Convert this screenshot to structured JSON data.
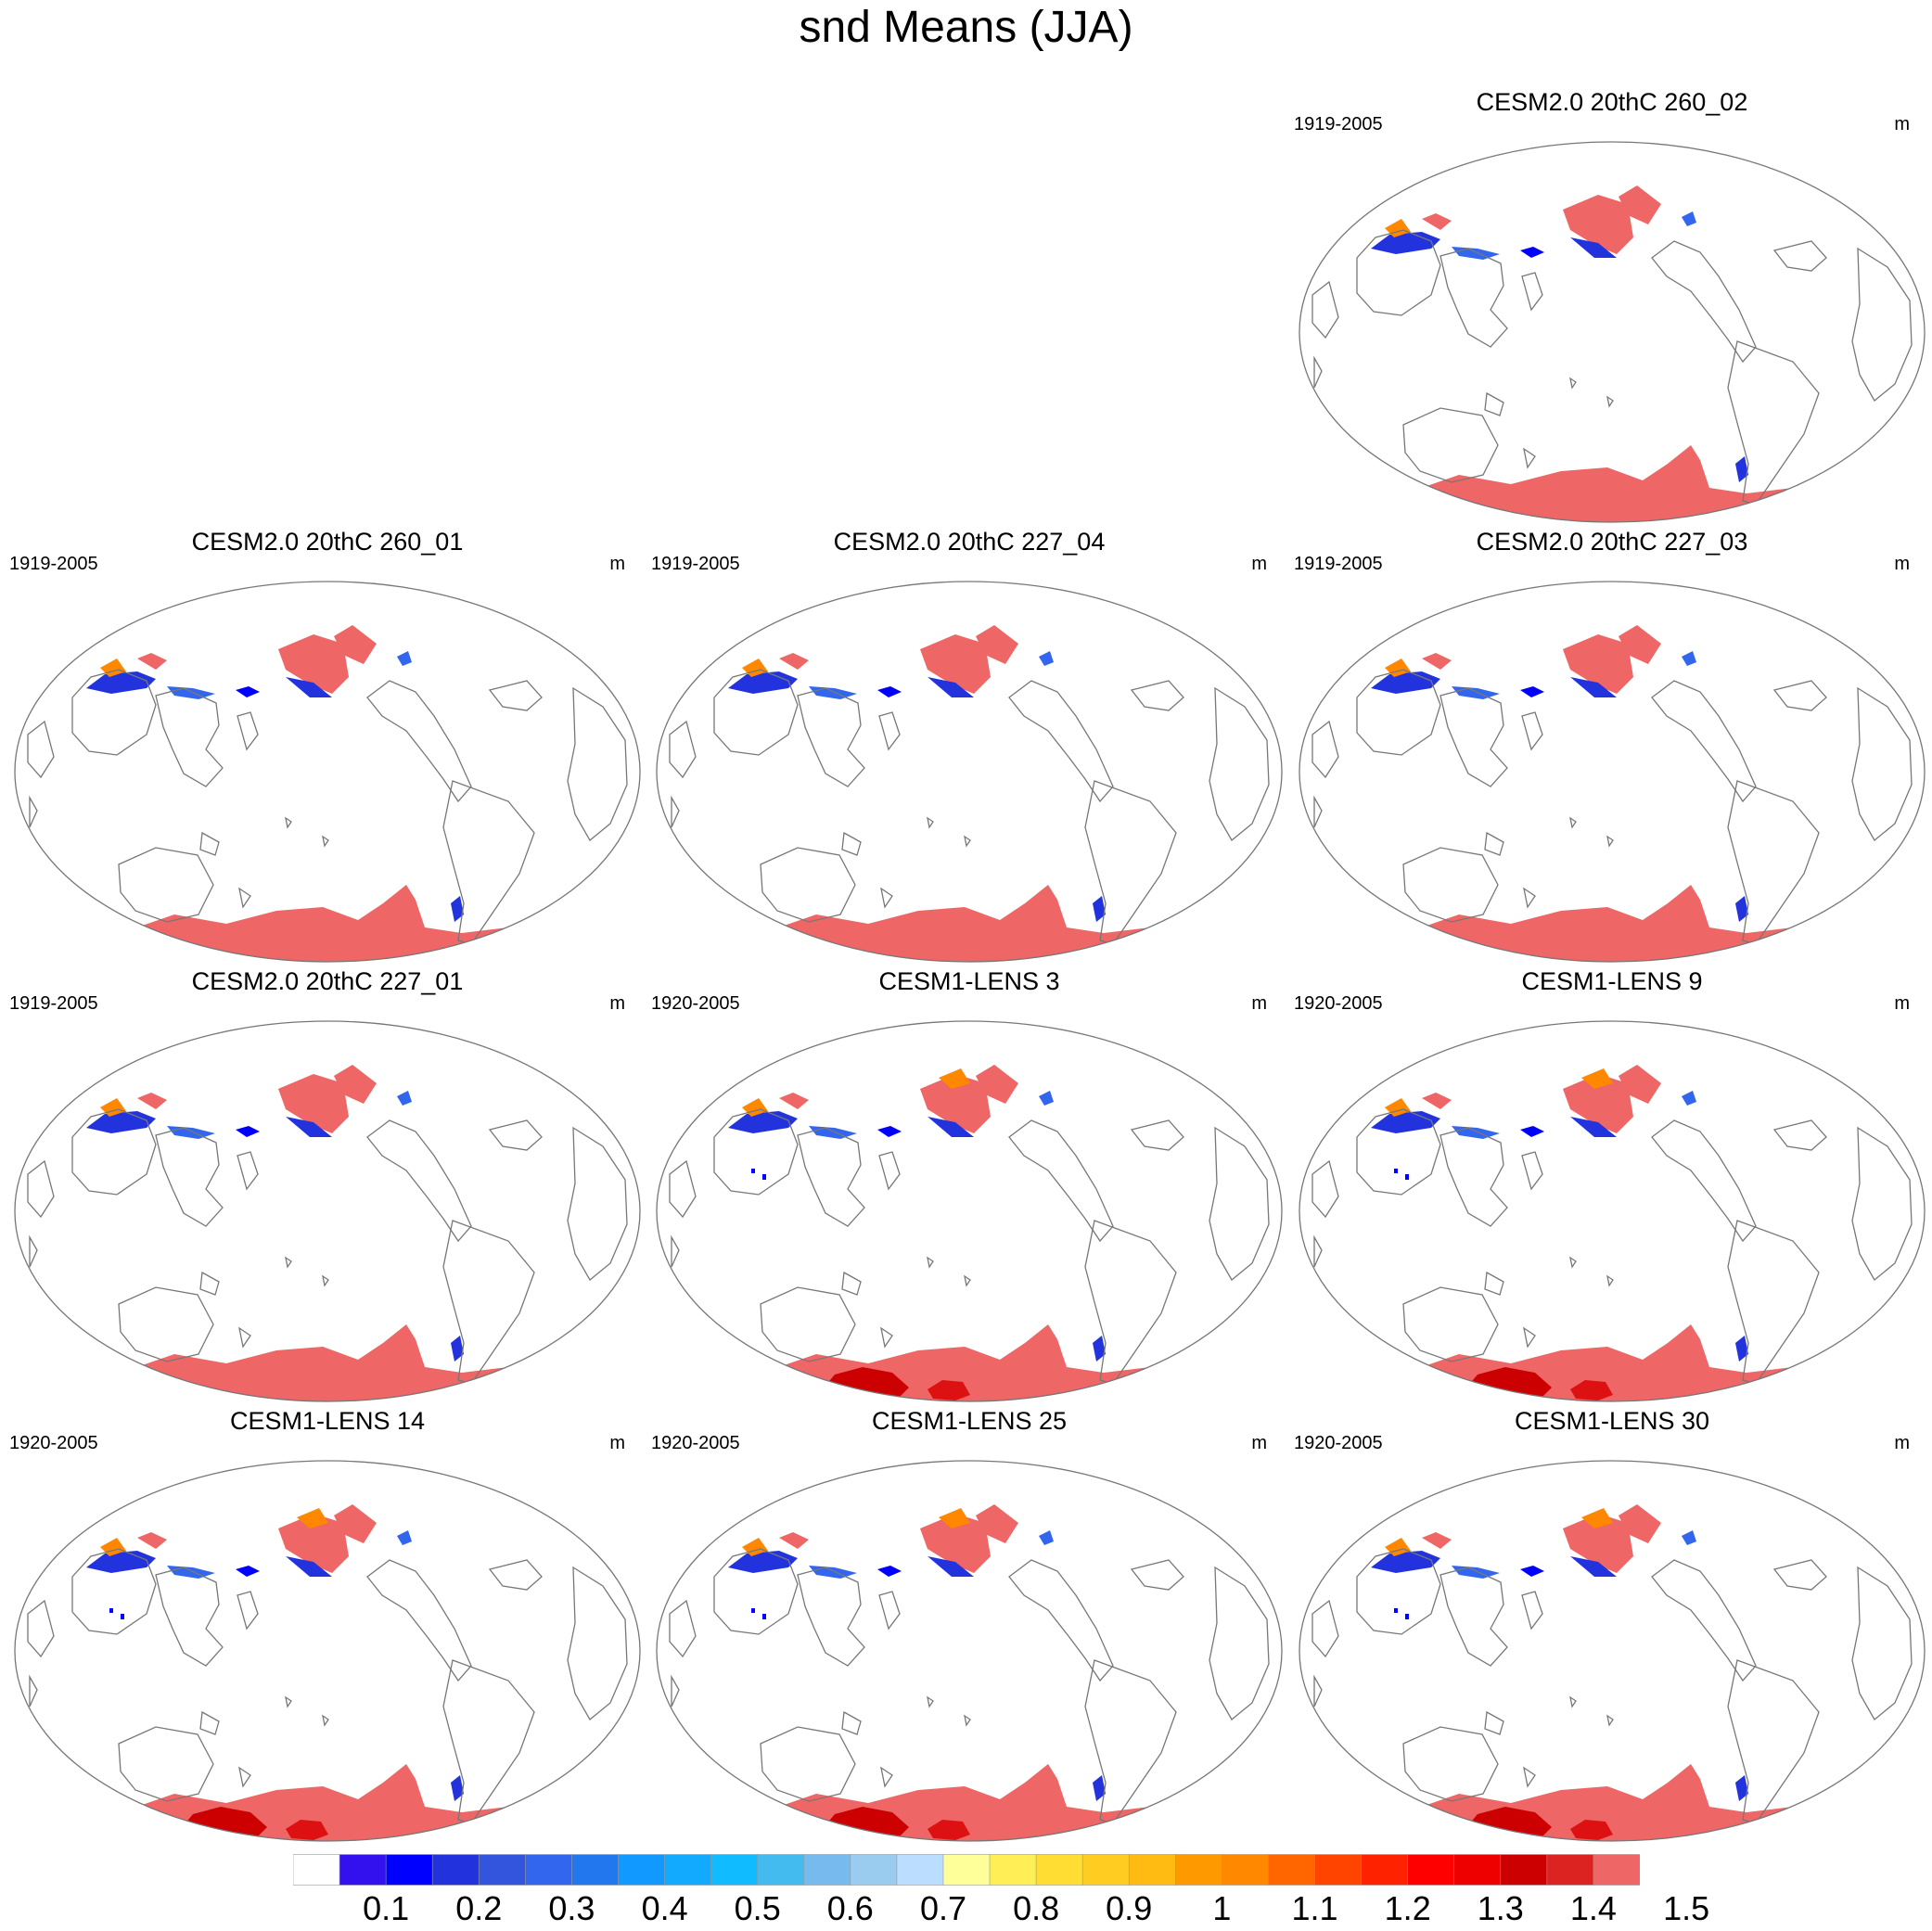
{
  "title": "snd Means (JJA)",
  "panels": [
    {
      "slot": 2,
      "title": "CESM2.0 20thC 260_02",
      "period": "1919-2005",
      "unit": "m",
      "ensemble": "CESM2"
    },
    {
      "slot": 3,
      "title": "CESM2.0 20thC 260_01",
      "period": "1919-2005",
      "unit": "m",
      "ensemble": "CESM2"
    },
    {
      "slot": 4,
      "title": "CESM2.0 20thC 227_04",
      "period": "1919-2005",
      "unit": "m",
      "ensemble": "CESM2"
    },
    {
      "slot": 5,
      "title": "CESM2.0 20thC 227_03",
      "period": "1919-2005",
      "unit": "m",
      "ensemble": "CESM2"
    },
    {
      "slot": 6,
      "title": "CESM2.0 20thC 227_01",
      "period": "1919-2005",
      "unit": "m",
      "ensemble": "CESM2"
    },
    {
      "slot": 7,
      "title": "CESM1-LENS 3",
      "period": "1920-2005",
      "unit": "m",
      "ensemble": "CESM1"
    },
    {
      "slot": 8,
      "title": "CESM1-LENS 9",
      "period": "1920-2005",
      "unit": "m",
      "ensemble": "CESM1"
    },
    {
      "slot": 9,
      "title": "CESM1-LENS 14",
      "period": "1920-2005",
      "unit": "m",
      "ensemble": "CESM1"
    },
    {
      "slot": 10,
      "title": "CESM1-LENS 25",
      "period": "1920-2005",
      "unit": "m",
      "ensemble": "CESM1"
    },
    {
      "slot": 11,
      "title": "CESM1-LENS 30",
      "period": "1920-2005",
      "unit": "m",
      "ensemble": "CESM1"
    }
  ],
  "colorbar": {
    "labels": [
      "0.1",
      "0.2",
      "0.3",
      "0.4",
      "0.5",
      "0.6",
      "0.7",
      "0.8",
      "0.9",
      "1",
      "1.1",
      "1.2",
      "1.3",
      "1.4",
      "1.5"
    ],
    "colors": [
      "#ffffff",
      "#3311ee",
      "#0000ff",
      "#2233dd",
      "#3355dd",
      "#3366ee",
      "#2277ee",
      "#1199ff",
      "#11aaff",
      "#11bbff",
      "#44bbee",
      "#77bbee",
      "#99ccee",
      "#bbddff",
      "#ffff99",
      "#ffee55",
      "#ffdd33",
      "#ffcc22",
      "#ffbb11",
      "#ff9900",
      "#ff8800",
      "#ff6600",
      "#ff4400",
      "#ff2200",
      "#ff0000",
      "#ee0000",
      "#cc0000",
      "#dd2222",
      "#ee6666"
    ]
  }
}
